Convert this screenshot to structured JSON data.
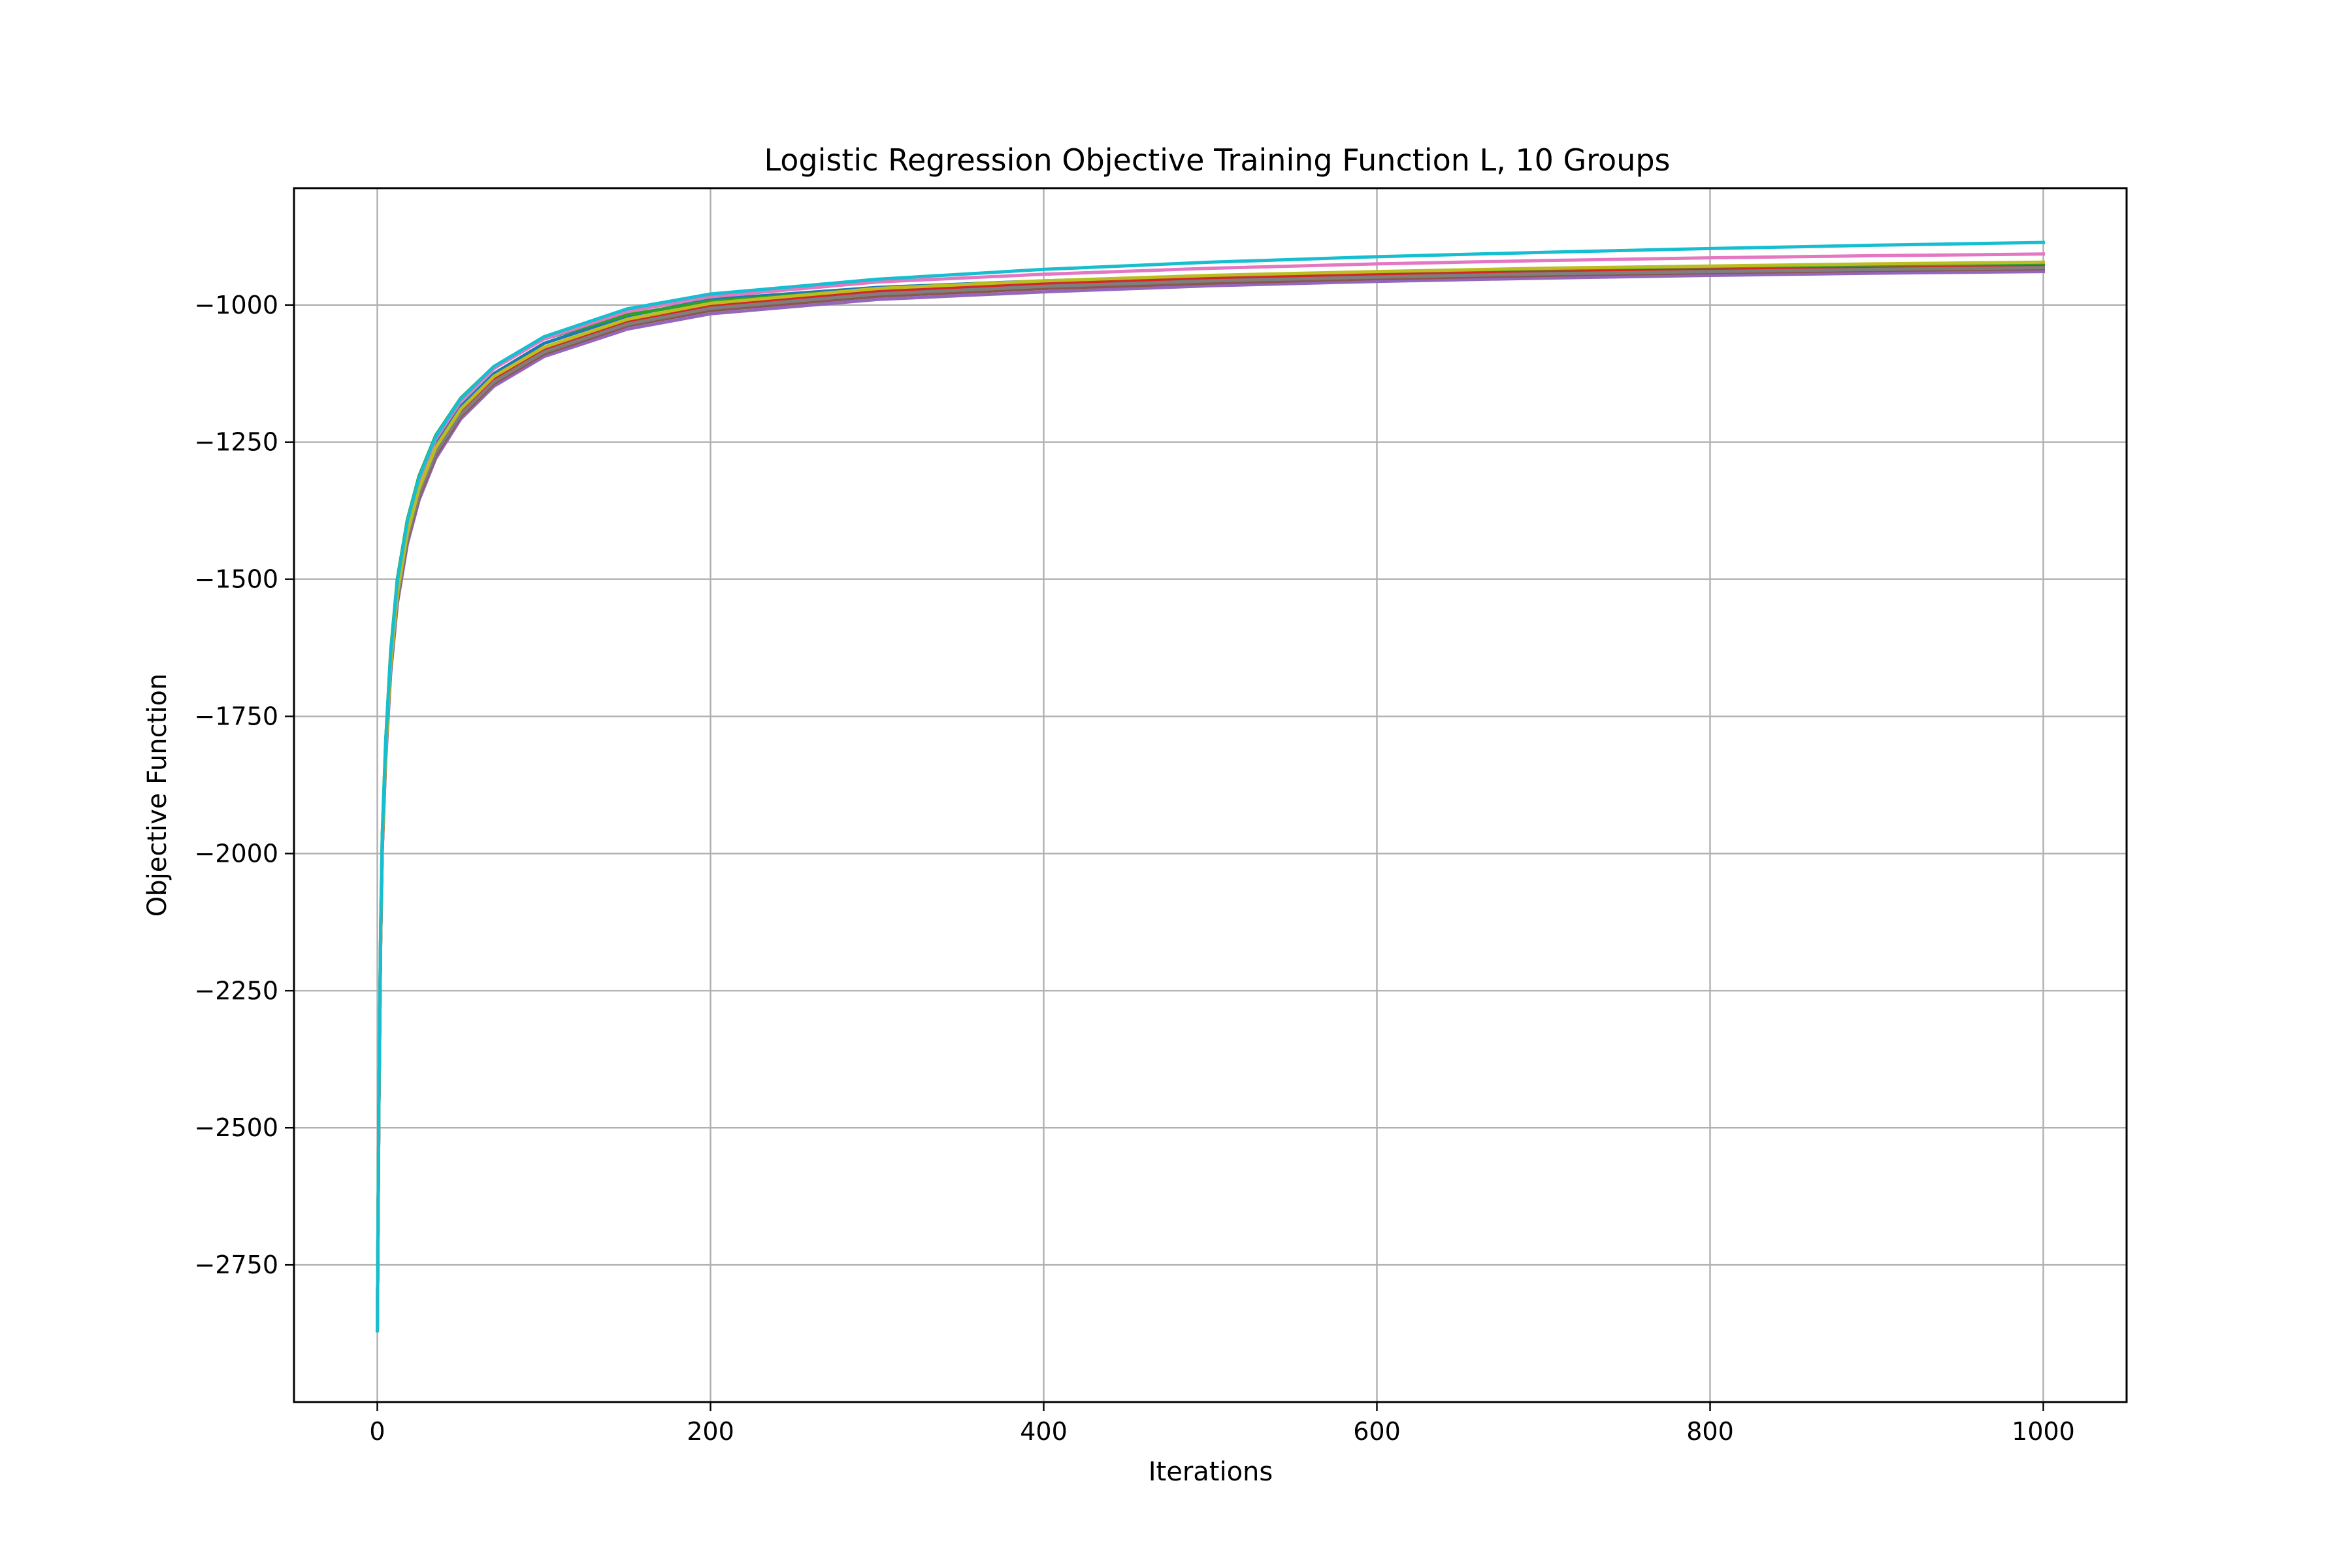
{
  "chart_data": {
    "type": "line",
    "title": "Logistic Regression Objective Training Function L, 10 Groups",
    "xlabel": "Iterations",
    "ylabel": "Objective Function",
    "xlim": [
      -50,
      1050
    ],
    "ylim": [
      -3000,
      -787
    ],
    "x_ticks": [
      0,
      200,
      400,
      600,
      800,
      1000
    ],
    "x_tick_labels": [
      "0",
      "200",
      "400",
      "600",
      "800",
      "1000"
    ],
    "y_ticks": [
      -2750,
      -2500,
      -2250,
      -2000,
      -1750,
      -1500,
      -1250,
      -1000
    ],
    "y_tick_labels": [
      "−2750",
      "−2500",
      "−2250",
      "−2000",
      "−1750",
      "−1500",
      "−1250",
      "−1000"
    ],
    "grid": true,
    "legend": "none",
    "series": [
      {
        "color": "#1f77b4",
        "values": [
          [
            0,
            -2870
          ],
          [
            1,
            -2450
          ],
          [
            2,
            -2150
          ],
          [
            3,
            -1980
          ],
          [
            5,
            -1810
          ],
          [
            8,
            -1650
          ],
          [
            12,
            -1520
          ],
          [
            18,
            -1410
          ],
          [
            25,
            -1330
          ],
          [
            35,
            -1255
          ],
          [
            50,
            -1185
          ],
          [
            70,
            -1125
          ],
          [
            100,
            -1070
          ],
          [
            150,
            -1020
          ],
          [
            200,
            -990
          ],
          [
            300,
            -968
          ],
          [
            400,
            -956
          ],
          [
            500,
            -947
          ],
          [
            600,
            -940
          ],
          [
            700,
            -935
          ],
          [
            800,
            -931
          ],
          [
            900,
            -928
          ],
          [
            1000,
            -925
          ]
        ]
      },
      {
        "color": "#ff7f0e",
        "values": [
          [
            0,
            -2870
          ],
          [
            1,
            -2455
          ],
          [
            2,
            -2160
          ],
          [
            3,
            -1990
          ],
          [
            5,
            -1825
          ],
          [
            8,
            -1668
          ],
          [
            12,
            -1540
          ],
          [
            18,
            -1430
          ],
          [
            25,
            -1350
          ],
          [
            35,
            -1272
          ],
          [
            50,
            -1200
          ],
          [
            70,
            -1140
          ],
          [
            100,
            -1085
          ],
          [
            150,
            -1032
          ],
          [
            200,
            -1002
          ],
          [
            300,
            -975
          ],
          [
            400,
            -961
          ],
          [
            500,
            -951
          ],
          [
            600,
            -944
          ],
          [
            700,
            -939
          ],
          [
            800,
            -935
          ],
          [
            900,
            -932
          ],
          [
            1000,
            -929
          ]
        ]
      },
      {
        "color": "#2ca02c",
        "values": [
          [
            0,
            -2870
          ],
          [
            1,
            -2440
          ],
          [
            2,
            -2135
          ],
          [
            3,
            -1965
          ],
          [
            5,
            -1795
          ],
          [
            8,
            -1632
          ],
          [
            12,
            -1500
          ],
          [
            18,
            -1392
          ],
          [
            25,
            -1312
          ],
          [
            35,
            -1238
          ],
          [
            50,
            -1170
          ],
          [
            70,
            -1112
          ],
          [
            100,
            -1062
          ],
          [
            150,
            -1018
          ],
          [
            200,
            -993
          ],
          [
            300,
            -971
          ],
          [
            400,
            -959
          ],
          [
            500,
            -950
          ],
          [
            600,
            -943
          ],
          [
            700,
            -938
          ],
          [
            800,
            -934
          ],
          [
            900,
            -931
          ],
          [
            1000,
            -928
          ]
        ]
      },
      {
        "color": "#d62728",
        "values": [
          [
            0,
            -2870
          ],
          [
            1,
            -2450
          ],
          [
            2,
            -2155
          ],
          [
            3,
            -1985
          ],
          [
            5,
            -1818
          ],
          [
            8,
            -1660
          ],
          [
            12,
            -1530
          ],
          [
            18,
            -1422
          ],
          [
            25,
            -1342
          ],
          [
            35,
            -1266
          ],
          [
            50,
            -1196
          ],
          [
            70,
            -1136
          ],
          [
            100,
            -1082
          ],
          [
            150,
            -1030
          ],
          [
            200,
            -1001
          ],
          [
            300,
            -975
          ],
          [
            400,
            -962
          ],
          [
            500,
            -952
          ],
          [
            600,
            -945
          ],
          [
            700,
            -940
          ],
          [
            800,
            -936
          ],
          [
            900,
            -933
          ],
          [
            1000,
            -930
          ]
        ]
      },
      {
        "color": "#9467bd",
        "values": [
          [
            0,
            -2870
          ],
          [
            1,
            -2460
          ],
          [
            2,
            -2165
          ],
          [
            3,
            -1995
          ],
          [
            5,
            -1830
          ],
          [
            8,
            -1672
          ],
          [
            12,
            -1545
          ],
          [
            18,
            -1436
          ],
          [
            25,
            -1356
          ],
          [
            35,
            -1280
          ],
          [
            50,
            -1208
          ],
          [
            70,
            -1148
          ],
          [
            100,
            -1094
          ],
          [
            150,
            -1044
          ],
          [
            200,
            -1016
          ],
          [
            300,
            -990
          ],
          [
            400,
            -976
          ],
          [
            500,
            -965
          ],
          [
            600,
            -957
          ],
          [
            700,
            -951
          ],
          [
            800,
            -946
          ],
          [
            900,
            -942
          ],
          [
            1000,
            -939
          ]
        ]
      },
      {
        "color": "#8c564b",
        "values": [
          [
            0,
            -2870
          ],
          [
            1,
            -2455
          ],
          [
            2,
            -2160
          ],
          [
            3,
            -1990
          ],
          [
            5,
            -1825
          ],
          [
            8,
            -1667
          ],
          [
            12,
            -1540
          ],
          [
            18,
            -1430
          ],
          [
            25,
            -1350
          ],
          [
            35,
            -1274
          ],
          [
            50,
            -1203
          ],
          [
            70,
            -1143
          ],
          [
            100,
            -1089
          ],
          [
            150,
            -1038
          ],
          [
            200,
            -1010
          ],
          [
            300,
            -984
          ],
          [
            400,
            -970
          ],
          [
            500,
            -960
          ],
          [
            600,
            -952
          ],
          [
            700,
            -946
          ],
          [
            800,
            -941
          ],
          [
            900,
            -937
          ],
          [
            1000,
            -934
          ]
        ]
      },
      {
        "color": "#e377c2",
        "values": [
          [
            0,
            -2870
          ],
          [
            1,
            -2445
          ],
          [
            2,
            -2145
          ],
          [
            3,
            -1975
          ],
          [
            5,
            -1805
          ],
          [
            8,
            -1642
          ],
          [
            12,
            -1510
          ],
          [
            18,
            -1400
          ],
          [
            25,
            -1320
          ],
          [
            35,
            -1245
          ],
          [
            50,
            -1176
          ],
          [
            70,
            -1116
          ],
          [
            100,
            -1062
          ],
          [
            150,
            -1012
          ],
          [
            200,
            -985
          ],
          [
            300,
            -958
          ],
          [
            400,
            -944
          ],
          [
            500,
            -933
          ],
          [
            600,
            -925
          ],
          [
            700,
            -919
          ],
          [
            800,
            -914
          ],
          [
            900,
            -910
          ],
          [
            1000,
            -907
          ]
        ]
      },
      {
        "color": "#7f7f7f",
        "values": [
          [
            0,
            -2870
          ],
          [
            1,
            -2452
          ],
          [
            2,
            -2158
          ],
          [
            3,
            -1988
          ],
          [
            5,
            -1822
          ],
          [
            8,
            -1664
          ],
          [
            12,
            -1536
          ],
          [
            18,
            -1427
          ],
          [
            25,
            -1346
          ],
          [
            35,
            -1270
          ],
          [
            50,
            -1200
          ],
          [
            70,
            -1140
          ],
          [
            100,
            -1086
          ],
          [
            150,
            -1035
          ],
          [
            200,
            -1006
          ],
          [
            300,
            -980
          ],
          [
            400,
            -966
          ],
          [
            500,
            -956
          ],
          [
            600,
            -949
          ],
          [
            700,
            -943
          ],
          [
            800,
            -939
          ],
          [
            900,
            -935
          ],
          [
            1000,
            -932
          ]
        ]
      },
      {
        "color": "#bcbd22",
        "values": [
          [
            0,
            -2870
          ],
          [
            1,
            -2448
          ],
          [
            2,
            -2150
          ],
          [
            3,
            -1980
          ],
          [
            5,
            -1815
          ],
          [
            8,
            -1656
          ],
          [
            12,
            -1526
          ],
          [
            18,
            -1416
          ],
          [
            25,
            -1335
          ],
          [
            35,
            -1260
          ],
          [
            50,
            -1190
          ],
          [
            70,
            -1130
          ],
          [
            100,
            -1077
          ],
          [
            150,
            -1026
          ],
          [
            200,
            -997
          ],
          [
            300,
            -970
          ],
          [
            400,
            -956
          ],
          [
            500,
            -946
          ],
          [
            600,
            -939
          ],
          [
            700,
            -933
          ],
          [
            800,
            -929
          ],
          [
            900,
            -925
          ],
          [
            1000,
            -922
          ]
        ]
      },
      {
        "color": "#17becf",
        "values": [
          [
            0,
            -2870
          ],
          [
            1,
            -2440
          ],
          [
            2,
            -2138
          ],
          [
            3,
            -1968
          ],
          [
            5,
            -1798
          ],
          [
            8,
            -1636
          ],
          [
            12,
            -1504
          ],
          [
            18,
            -1395
          ],
          [
            25,
            -1315
          ],
          [
            35,
            -1240
          ],
          [
            50,
            -1171
          ],
          [
            70,
            -1112
          ],
          [
            100,
            -1058
          ],
          [
            150,
            -1007
          ],
          [
            200,
            -980
          ],
          [
            300,
            -953
          ],
          [
            400,
            -935
          ],
          [
            500,
            -922
          ],
          [
            600,
            -912
          ],
          [
            700,
            -904
          ],
          [
            800,
            -897
          ],
          [
            900,
            -891
          ],
          [
            1000,
            -886
          ]
        ]
      }
    ]
  }
}
